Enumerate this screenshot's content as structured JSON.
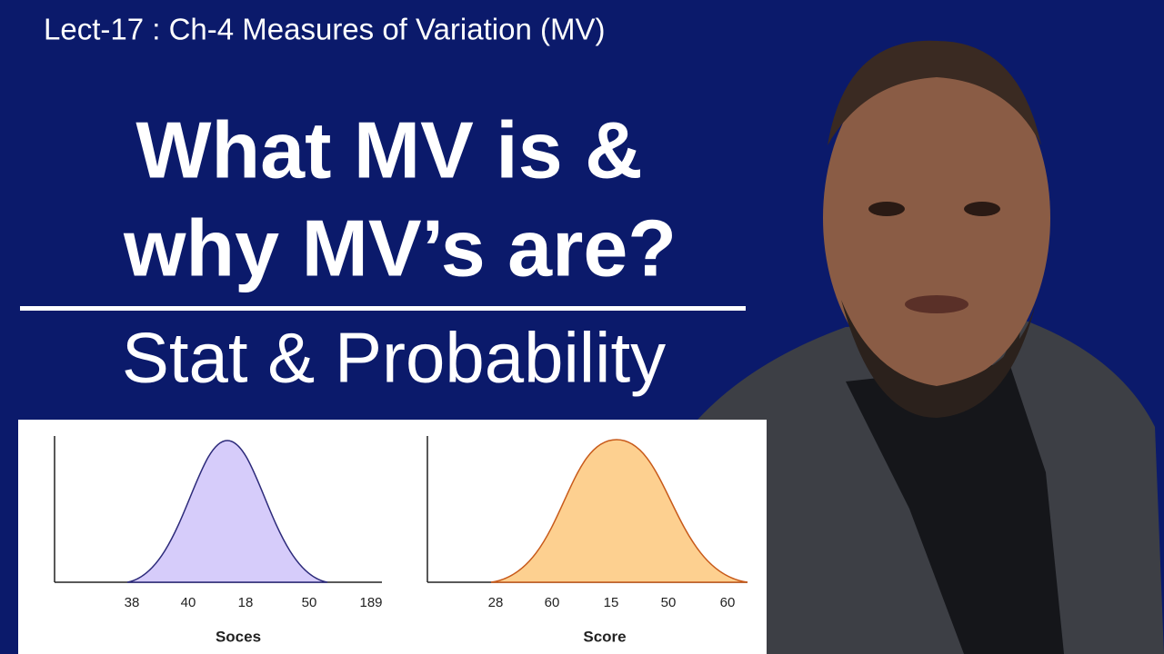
{
  "header": {
    "lecture": "Lect-17 : Ch-4 Measures of Variation (MV)"
  },
  "title": {
    "lines": [
      "What MV is &",
      "why MV’s are?"
    ]
  },
  "subtitle": "Stat & Probability",
  "panels": [
    {
      "ticks": [
        "38",
        "40",
        "18",
        "50",
        "189"
      ],
      "xlabel": "Soces"
    },
    {
      "ticks": [
        "28",
        "60",
        "15",
        "50",
        "60"
      ],
      "xlabel": "Score"
    }
  ]
}
